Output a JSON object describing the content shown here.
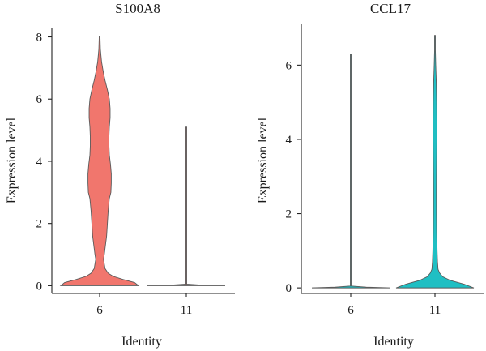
{
  "chart_data": [
    {
      "type": "violin",
      "title": "S100A8",
      "xlabel": "Identity",
      "ylabel": "Expression level",
      "categories": [
        "6",
        "11"
      ],
      "ylim": [
        -0.25,
        8.3
      ],
      "yticks": [
        0,
        2,
        4,
        6,
        8
      ],
      "grid": false,
      "series": [
        {
          "category": "6",
          "color": "#F1766D",
          "max": 8.0,
          "profile": [
            [
              0.0,
              1.0
            ],
            [
              0.1,
              0.9
            ],
            [
              0.2,
              0.6
            ],
            [
              0.3,
              0.35
            ],
            [
              0.4,
              0.22
            ],
            [
              0.55,
              0.14
            ],
            [
              0.7,
              0.12
            ],
            [
              0.85,
              0.1
            ],
            [
              1.0,
              0.12
            ],
            [
              1.3,
              0.15
            ],
            [
              1.6,
              0.18
            ],
            [
              2.0,
              0.2
            ],
            [
              2.4,
              0.22
            ],
            [
              2.8,
              0.25
            ],
            [
              3.0,
              0.29
            ],
            [
              3.3,
              0.3
            ],
            [
              3.6,
              0.3
            ],
            [
              3.9,
              0.28
            ],
            [
              4.2,
              0.25
            ],
            [
              4.5,
              0.24
            ],
            [
              4.8,
              0.24
            ],
            [
              5.1,
              0.25
            ],
            [
              5.4,
              0.27
            ],
            [
              5.7,
              0.27
            ],
            [
              6.0,
              0.25
            ],
            [
              6.3,
              0.2
            ],
            [
              6.6,
              0.14
            ],
            [
              6.9,
              0.09
            ],
            [
              7.2,
              0.05
            ],
            [
              7.6,
              0.02
            ],
            [
              8.0,
              0.0
            ]
          ]
        },
        {
          "category": "11",
          "color": "#F1766D",
          "max": 5.1,
          "profile": [
            [
              0.0,
              1.0
            ],
            [
              0.02,
              0.4
            ],
            [
              0.05,
              0.01
            ],
            [
              5.1,
              0.0
            ]
          ]
        }
      ]
    },
    {
      "type": "violin",
      "title": "CCL17",
      "xlabel": "Identity",
      "ylabel": "Expression level",
      "categories": [
        "6",
        "11"
      ],
      "ylim": [
        -0.15,
        7.1
      ],
      "yticks": [
        0,
        2,
        4,
        6
      ],
      "grid": false,
      "series": [
        {
          "category": "6",
          "color": "#1FBFC3",
          "max": 6.3,
          "profile": [
            [
              0.0,
              1.0
            ],
            [
              0.02,
              0.4
            ],
            [
              0.05,
              0.01
            ],
            [
              6.3,
              0.0
            ]
          ]
        },
        {
          "category": "11",
          "color": "#1FBFC3",
          "max": 6.8,
          "profile": [
            [
              0.0,
              1.0
            ],
            [
              0.1,
              0.75
            ],
            [
              0.2,
              0.4
            ],
            [
              0.3,
              0.2
            ],
            [
              0.4,
              0.12
            ],
            [
              0.5,
              0.08
            ],
            [
              0.7,
              0.065
            ],
            [
              1.0,
              0.055
            ],
            [
              1.5,
              0.045
            ],
            [
              2.0,
              0.04
            ],
            [
              2.5,
              0.038
            ],
            [
              3.0,
              0.04
            ],
            [
              3.5,
              0.045
            ],
            [
              4.0,
              0.05
            ],
            [
              4.5,
              0.05
            ],
            [
              5.0,
              0.045
            ],
            [
              5.5,
              0.035
            ],
            [
              6.0,
              0.02
            ],
            [
              6.4,
              0.01
            ],
            [
              6.8,
              0.0
            ]
          ]
        }
      ]
    }
  ]
}
